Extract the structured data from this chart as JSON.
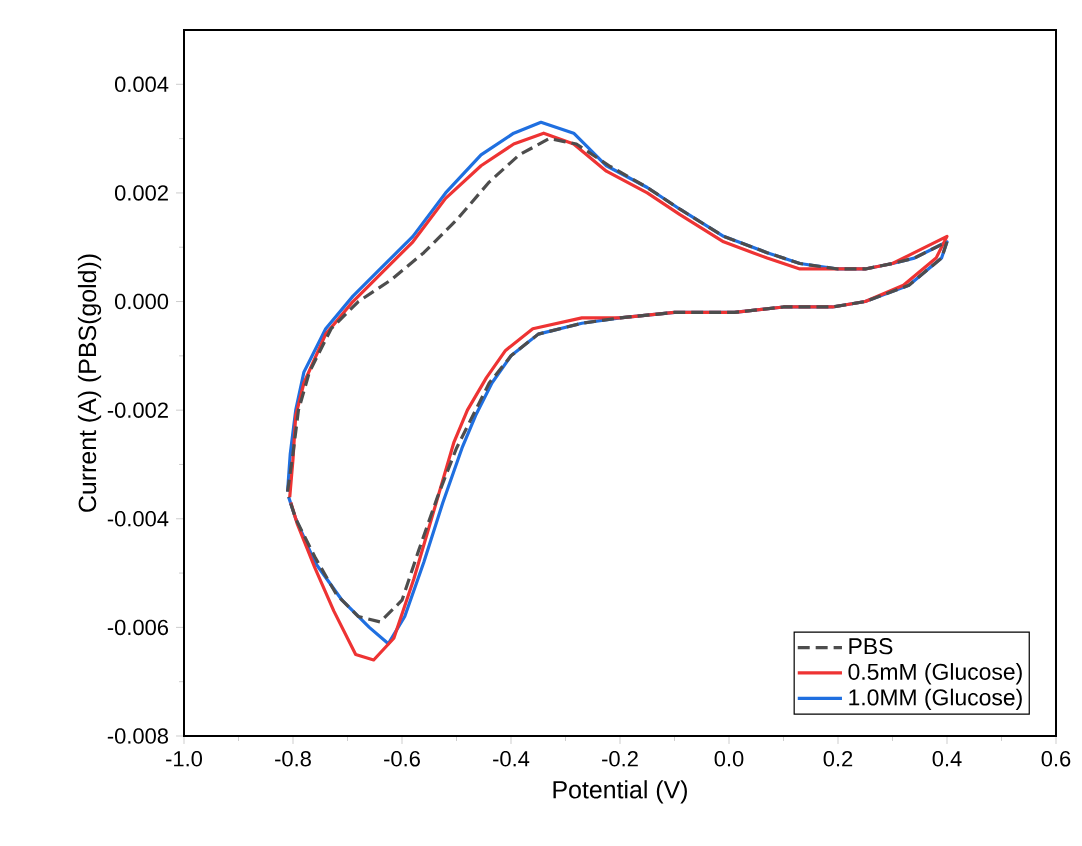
{
  "chart_data": {
    "type": "line",
    "xlabel": "Potential (V)",
    "ylabel": "Current (A) (PBS(gold))",
    "xlim": [
      -1.0,
      0.6
    ],
    "ylim": [
      -0.008,
      0.005
    ],
    "xticks": [
      {
        "value": -1.0,
        "label": "-1.0"
      },
      {
        "value": -0.8,
        "label": "-0.8"
      },
      {
        "value": -0.6,
        "label": "-0.6"
      },
      {
        "value": -0.4,
        "label": "-0.4"
      },
      {
        "value": -0.2,
        "label": "-0.2"
      },
      {
        "value": 0.0,
        "label": "0.0"
      },
      {
        "value": 0.2,
        "label": "0.2"
      },
      {
        "value": 0.4,
        "label": "0.4"
      },
      {
        "value": 0.6,
        "label": "0.6"
      }
    ],
    "yticks": [
      {
        "value": -0.008,
        "label": "-0.008"
      },
      {
        "value": -0.006,
        "label": "-0.006"
      },
      {
        "value": -0.004,
        "label": "-0.004"
      },
      {
        "value": -0.002,
        "label": "-0.002"
      },
      {
        "value": 0.0,
        "label": "0.000"
      },
      {
        "value": 0.002,
        "label": "0.002"
      },
      {
        "value": 0.004,
        "label": "0.004"
      }
    ],
    "grid": false,
    "legend": "bottom right",
    "marker": "none",
    "series": [
      {
        "name": "PBS",
        "color": "#4d4d4d",
        "line_style": "dashed",
        "x": [
          -0.81,
          -0.8,
          -0.79,
          -0.77,
          -0.73,
          -0.68,
          -0.62,
          -0.56,
          -0.5,
          -0.44,
          -0.385,
          -0.33,
          -0.28,
          -0.22,
          -0.15,
          -0.09,
          -0.01,
          0.07,
          0.13,
          0.2,
          0.25,
          0.3,
          0.34,
          0.4,
          0.39,
          0.33,
          0.25,
          0.19,
          0.1,
          0.01,
          -0.1,
          -0.2,
          -0.27,
          -0.35,
          -0.4,
          -0.44,
          -0.47,
          -0.5,
          -0.535,
          -0.57,
          -0.6,
          -0.64,
          -0.68,
          -0.72,
          -0.76,
          -0.795,
          -0.808
        ],
        "values": [
          -0.0035,
          -0.0028,
          -0.002,
          -0.0013,
          -0.0005,
          0.0,
          0.0004,
          0.0009,
          0.0015,
          0.0022,
          0.0027,
          0.003,
          0.0029,
          0.0025,
          0.0021,
          0.0017,
          0.0012,
          0.0009,
          0.0007,
          0.0006,
          0.0006,
          0.0007,
          0.0008,
          0.0011,
          0.0008,
          0.0003,
          0.0,
          -0.0001,
          -0.0001,
          -0.0002,
          -0.0002,
          -0.0003,
          -0.0004,
          -0.0006,
          -0.001,
          -0.0015,
          -0.0021,
          -0.0027,
          -0.0036,
          -0.0046,
          -0.0055,
          -0.0059,
          -0.0058,
          -0.0054,
          -0.0047,
          -0.004,
          -0.0036
        ]
      },
      {
        "name": "0.5mM (Glucose)",
        "color": "#ee3333",
        "line_style": "solid",
        "x": [
          -0.806,
          -0.8,
          -0.795,
          -0.78,
          -0.74,
          -0.69,
          -0.64,
          -0.58,
          -0.52,
          -0.455,
          -0.395,
          -0.34,
          -0.285,
          -0.225,
          -0.15,
          -0.09,
          -0.01,
          0.07,
          0.13,
          0.2,
          0.25,
          0.3,
          0.34,
          0.4,
          0.38,
          0.32,
          0.25,
          0.19,
          0.1,
          0.01,
          -0.1,
          -0.2,
          -0.27,
          -0.36,
          -0.41,
          -0.445,
          -0.48,
          -0.505,
          -0.54,
          -0.578,
          -0.615,
          -0.652,
          -0.685,
          -0.725,
          -0.76,
          -0.792,
          -0.804
        ],
        "values": [
          -0.0036,
          -0.0029,
          -0.0021,
          -0.0015,
          -0.0006,
          0.0,
          0.0005,
          0.0011,
          0.0019,
          0.0025,
          0.0029,
          0.0031,
          0.0029,
          0.0024,
          0.002,
          0.0016,
          0.0011,
          0.0008,
          0.0006,
          0.0006,
          0.0006,
          0.0007,
          0.0009,
          0.0012,
          0.0008,
          0.0003,
          0.0,
          -0.0001,
          -0.0001,
          -0.0002,
          -0.0002,
          -0.0003,
          -0.0003,
          -0.0005,
          -0.0009,
          -0.0014,
          -0.002,
          -0.0026,
          -0.0038,
          -0.0051,
          -0.0062,
          -0.0066,
          -0.0065,
          -0.0057,
          -0.0049,
          -0.0041,
          -0.0037
        ]
      },
      {
        "name": "1.0MM (Glucose)",
        "color": "#1f6fe0",
        "line_style": "solid",
        "x": [
          -0.81,
          -0.805,
          -0.795,
          -0.78,
          -0.74,
          -0.69,
          -0.64,
          -0.58,
          -0.52,
          -0.455,
          -0.395,
          -0.345,
          -0.285,
          -0.225,
          -0.15,
          -0.09,
          -0.01,
          0.07,
          0.13,
          0.2,
          0.25,
          0.3,
          0.34,
          0.4,
          0.39,
          0.33,
          0.25,
          0.19,
          0.1,
          0.01,
          -0.1,
          -0.2,
          -0.27,
          -0.35,
          -0.4,
          -0.435,
          -0.465,
          -0.49,
          -0.525,
          -0.56,
          -0.595,
          -0.625,
          -0.66,
          -0.71,
          -0.76,
          -0.795,
          -0.808
        ],
        "values": [
          -0.0035,
          -0.0028,
          -0.002,
          -0.0013,
          -0.0005,
          0.0001,
          0.0006,
          0.0012,
          0.002,
          0.0027,
          0.0031,
          0.0033,
          0.0031,
          0.0025,
          0.0021,
          0.0017,
          0.0012,
          0.0009,
          0.0007,
          0.0006,
          0.0006,
          0.0007,
          0.0008,
          0.0011,
          0.0008,
          0.0003,
          0.0,
          -0.0001,
          -0.0001,
          -0.0002,
          -0.0002,
          -0.0003,
          -0.0004,
          -0.0006,
          -0.001,
          -0.0015,
          -0.0021,
          -0.0027,
          -0.0037,
          -0.0048,
          -0.0058,
          -0.0063,
          -0.006,
          -0.0055,
          -0.0048,
          -0.004,
          -0.0036
        ]
      }
    ]
  }
}
